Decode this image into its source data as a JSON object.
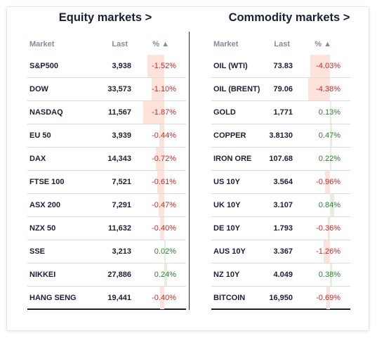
{
  "colors": {
    "negative": "#c62828",
    "positive": "#2e7d32",
    "negative_bar": "#fde3da",
    "positive_bar": "#e2f0dc"
  },
  "equity": {
    "title": "Equity markets >",
    "headers": {
      "market": "Market",
      "last": "Last",
      "pct": "% ▲"
    },
    "rows": [
      {
        "market": "S&P500",
        "last": "3,938",
        "change": "-1.52%",
        "value": -1.52
      },
      {
        "market": "DOW",
        "last": "33,573",
        "change": "-1.10%",
        "value": -1.1
      },
      {
        "market": "NASDAQ",
        "last": "11,567",
        "change": "-1.87%",
        "value": -1.87
      },
      {
        "market": "EU 50",
        "last": "3,939",
        "change": "-0.44%",
        "value": -0.44
      },
      {
        "market": "DAX",
        "last": "14,343",
        "change": "-0.72%",
        "value": -0.72
      },
      {
        "market": "FTSE 100",
        "last": "7,521",
        "change": "-0.61%",
        "value": -0.61
      },
      {
        "market": "ASX 200",
        "last": "7,291",
        "change": "-0.47%",
        "value": -0.47
      },
      {
        "market": "NZX 50",
        "last": "11,632",
        "change": "-0.40%",
        "value": -0.4
      },
      {
        "market": "SSE",
        "last": "3,213",
        "change": "0.02%",
        "value": 0.02
      },
      {
        "market": "NIKKEI",
        "last": "27,886",
        "change": "0.24%",
        "value": 0.24
      },
      {
        "market": "HANG SENG",
        "last": "19,441",
        "change": "-0.40%",
        "value": -0.4
      }
    ]
  },
  "commodity": {
    "title": "Commodity markets >",
    "headers": {
      "market": "Market",
      "last": "Last",
      "pct": "% ▲"
    },
    "rows": [
      {
        "market": "OIL (WTI)",
        "last": "73.83",
        "change": "-4.03%",
        "value": -4.03
      },
      {
        "market": "OIL (BRENT)",
        "last": "79.06",
        "change": "-4.38%",
        "value": -4.38
      },
      {
        "market": "GOLD",
        "last": "1,771",
        "change": "0.13%",
        "value": 0.13
      },
      {
        "market": "COPPER",
        "last": "3.8130",
        "change": "0.47%",
        "value": 0.47
      },
      {
        "market": "IRON ORE",
        "last": "107.68",
        "change": "0.22%",
        "value": 0.22
      },
      {
        "market": "US 10Y",
        "last": "3.564",
        "change": "-0.96%",
        "value": -0.96
      },
      {
        "market": "UK 10Y",
        "last": "3.107",
        "change": "0.84%",
        "value": 0.84
      },
      {
        "market": "DE 10Y",
        "last": "1.793",
        "change": "-0.36%",
        "value": -0.36
      },
      {
        "market": "AUS 10Y",
        "last": "3.367",
        "change": "-1.26%",
        "value": -1.26
      },
      {
        "market": "NZ 10Y",
        "last": "4.049",
        "change": "0.38%",
        "value": 0.38
      },
      {
        "market": "BITCOIN",
        "last": "16,950",
        "change": "-0.69%",
        "value": -0.69
      }
    ]
  }
}
